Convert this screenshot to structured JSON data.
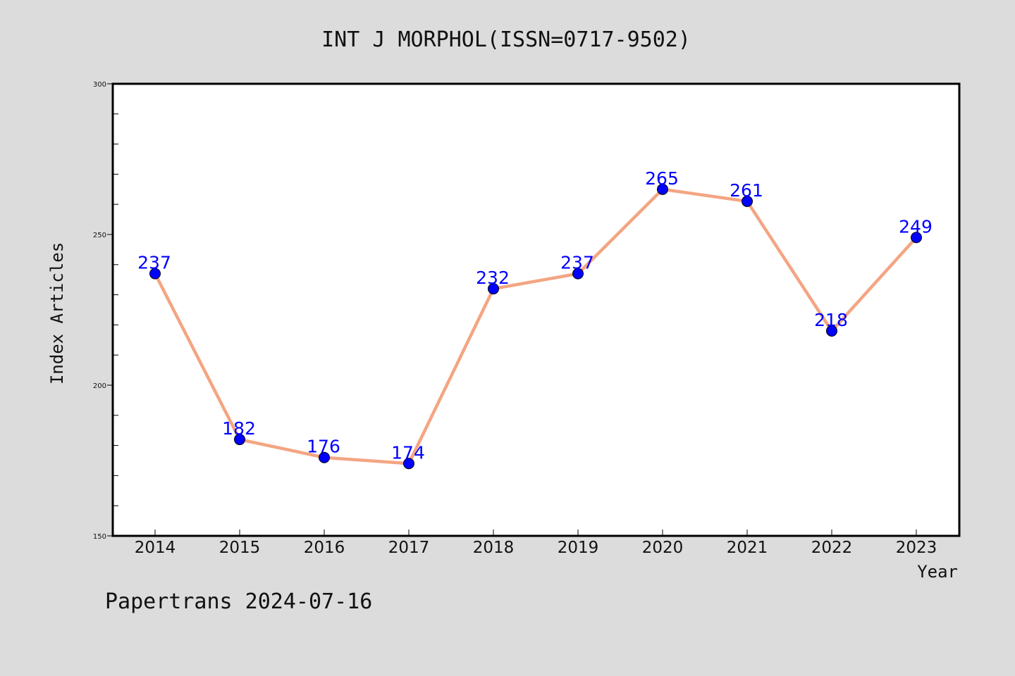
{
  "chart_data": {
    "type": "line",
    "title": "INT J MORPHOL(ISSN=0717-9502)",
    "xlabel": "Year",
    "ylabel": "Index Articles",
    "categories": [
      "2014",
      "2015",
      "2016",
      "2017",
      "2018",
      "2019",
      "2020",
      "2021",
      "2022",
      "2023"
    ],
    "series": [
      {
        "values": [
          237,
          182,
          176,
          174,
          232,
          237,
          265,
          261,
          218,
          249
        ],
        "line_color": "#f4a582",
        "marker_color": "#0000ff",
        "label_color": "#0000ff"
      }
    ],
    "ylim": [
      150,
      300
    ],
    "y_major_ticks": [
      150,
      200,
      250,
      300
    ],
    "y_minor_step": 10,
    "grid": false,
    "data_labels": true
  },
  "footer": {
    "text": "Papertrans 2024-07-16"
  },
  "colors": {
    "background": "#dcdcdc",
    "plot_background": "#ffffff",
    "frame": "#000000"
  }
}
